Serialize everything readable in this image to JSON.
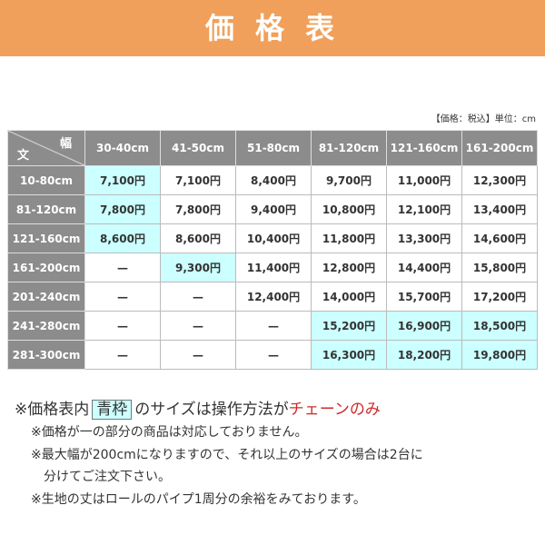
{
  "header": {
    "title": "価 格 表"
  },
  "unit_note": "【価格：税込】単位：cm",
  "table": {
    "corner": {
      "top": "幅",
      "bottom": "文"
    },
    "columns": [
      "30-40cm",
      "41-50cm",
      "51-80cm",
      "81-120cm",
      "121-160cm",
      "161-200cm"
    ],
    "rows": [
      {
        "label": "10-80cm",
        "cells": [
          "7,100円",
          "7,100円",
          "8,400円",
          "9,700円",
          "11,000円",
          "12,300円"
        ]
      },
      {
        "label": "81-120cm",
        "cells": [
          "7,800円",
          "7,800円",
          "9,400円",
          "10,800円",
          "12,100円",
          "13,400円"
        ]
      },
      {
        "label": "121-160cm",
        "cells": [
          "8,600円",
          "8,600円",
          "10,400円",
          "11,800円",
          "13,300円",
          "14,600円"
        ]
      },
      {
        "label": "161-200cm",
        "cells": [
          "—",
          "9,300円",
          "11,400円",
          "12,800円",
          "14,400円",
          "15,800円"
        ]
      },
      {
        "label": "201-240cm",
        "cells": [
          "—",
          "—",
          "12,400円",
          "14,000円",
          "15,700円",
          "17,200円"
        ]
      },
      {
        "label": "241-280cm",
        "cells": [
          "—",
          "—",
          "—",
          "15,200円",
          "16,900円",
          "18,500円"
        ]
      },
      {
        "label": "281-300cm",
        "cells": [
          "—",
          "—",
          "—",
          "16,300円",
          "18,200円",
          "19,800円"
        ]
      }
    ],
    "highlight": [
      [
        0,
        0
      ],
      [
        1,
        0
      ],
      [
        2,
        0
      ],
      [
        3,
        1
      ],
      [
        5,
        3
      ],
      [
        5,
        4
      ],
      [
        5,
        5
      ],
      [
        6,
        3
      ],
      [
        6,
        4
      ],
      [
        6,
        5
      ]
    ]
  },
  "notes": {
    "main": {
      "before": "※価格表内",
      "boxed": "青枠",
      "middle": "のサイズは操作方法が",
      "red": "チェーンのみ"
    },
    "lines": [
      "※価格が一の部分の商品は対応しておりません。",
      "※最大幅が200cmになりますので、それ以上のサイズの場合は2台に",
      "分けてご注文下さい。",
      "※生地の丈はロールのパイプ1周分の余裕をみております。"
    ]
  }
}
